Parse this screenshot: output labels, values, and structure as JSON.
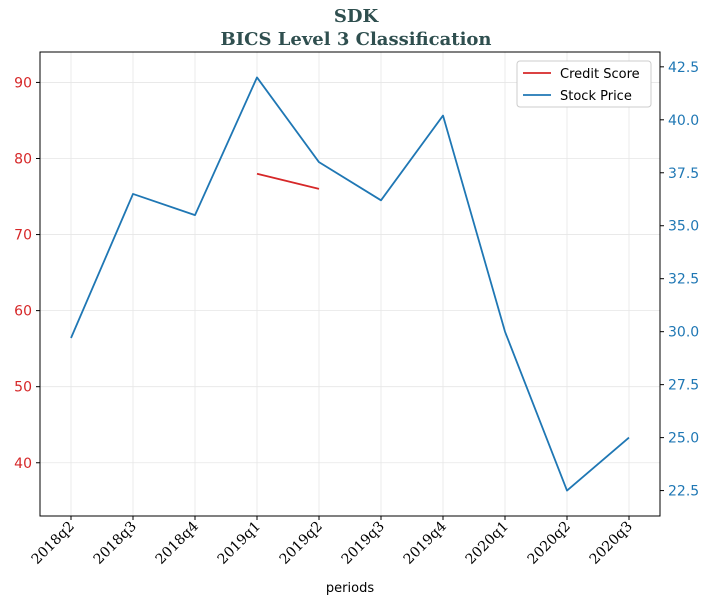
{
  "chart_data": {
    "type": "line",
    "title": "SDK",
    "subtitle": "BICS Level 3 Classification",
    "xlabel": "periods",
    "ylabel_left": "",
    "ylabel_right": "",
    "categories": [
      "2018q2",
      "2018q3",
      "2018q4",
      "2019q1",
      "2019q2",
      "2019q3",
      "2019q4",
      "2020q1",
      "2020q2",
      "2020q3"
    ],
    "left_axis": {
      "ylim": [
        33,
        94
      ],
      "ticks": [
        40,
        50,
        60,
        70,
        80,
        90
      ],
      "tick_labels": [
        "40",
        "50",
        "60",
        "70",
        "80",
        "90"
      ],
      "color": "#d62728"
    },
    "right_axis": {
      "ylim": [
        21.3,
        43.2
      ],
      "ticks": [
        22.5,
        25.0,
        27.5,
        30.0,
        32.5,
        35.0,
        37.5,
        40.0,
        42.5
      ],
      "tick_labels": [
        "22.5",
        "25.0",
        "27.5",
        "30.0",
        "32.5",
        "35.0",
        "37.5",
        "40.0",
        "42.5"
      ],
      "color": "#1f77b4"
    },
    "series": [
      {
        "name": "Credit Score",
        "axis": "left",
        "color": "#d62728",
        "values": [
          null,
          null,
          null,
          78,
          76,
          null,
          null,
          null,
          null,
          null
        ]
      },
      {
        "name": "Stock Price",
        "axis": "right",
        "color": "#1f77b4",
        "values": [
          29.7,
          36.5,
          35.5,
          42.0,
          38.0,
          36.2,
          40.2,
          30.0,
          22.5,
          25.0
        ]
      }
    ],
    "grid": true,
    "legend_position": "top-right"
  }
}
